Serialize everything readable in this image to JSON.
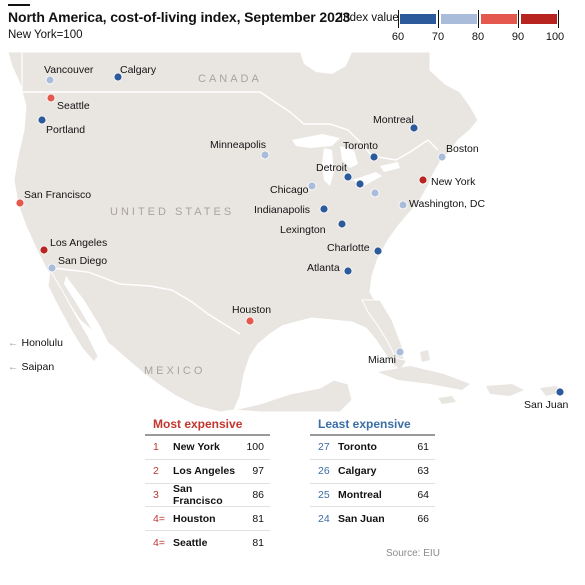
{
  "header": {
    "title": "North America, cost-of-living index, September 2023",
    "subtitle": "New York=100"
  },
  "legend": {
    "title": "Index value",
    "ticks": [
      "60",
      "70",
      "80",
      "90",
      "100"
    ],
    "bins": [
      {
        "from": 60,
        "to": 70,
        "color": "#2c5a9a"
      },
      {
        "from": 70,
        "to": 80,
        "color": "#a9bcd9"
      },
      {
        "from": 80,
        "to": 90,
        "color": "#e4584e"
      },
      {
        "from": 90,
        "to": 100,
        "color": "#b8241f"
      }
    ]
  },
  "country_labels": {
    "canada": "CANADA",
    "usa": "UNITED STATES",
    "mexico": "MEXICO"
  },
  "cities": [
    {
      "name": "Vancouver",
      "category": "70-80"
    },
    {
      "name": "Calgary",
      "category": "60-70"
    },
    {
      "name": "Seattle",
      "category": "80-90"
    },
    {
      "name": "Portland",
      "category": "60-70"
    },
    {
      "name": "San Francisco",
      "category": "80-90"
    },
    {
      "name": "Los Angeles",
      "category": "90-100"
    },
    {
      "name": "San Diego",
      "category": "70-80"
    },
    {
      "name": "Minneapolis",
      "category": "70-80"
    },
    {
      "name": "Chicago",
      "category": "70-80"
    },
    {
      "name": "Detroit",
      "category": "60-70"
    },
    {
      "name": "Toronto",
      "category": "60-70"
    },
    {
      "name": "Montreal",
      "category": "60-70"
    },
    {
      "name": "Boston",
      "category": "70-80"
    },
    {
      "name": "New York",
      "category": "90-100"
    },
    {
      "name": "Washington, DC",
      "category": "70-80"
    },
    {
      "name": "Indianapolis",
      "category": "60-70"
    },
    {
      "name": "Lexington",
      "category": "60-70"
    },
    {
      "name": "Charlotte",
      "category": "60-70"
    },
    {
      "name": "Atlanta",
      "category": "60-70"
    },
    {
      "name": "Houston",
      "category": "80-90"
    },
    {
      "name": "Miami",
      "category": "70-80"
    },
    {
      "name": "San Juan",
      "category": "60-70"
    }
  ],
  "offmap": {
    "honolulu": "Honolulu",
    "saipan": "Saipan"
  },
  "most_expensive": {
    "heading": "Most expensive",
    "rows": [
      {
        "rank": "1",
        "city": "New York",
        "value": "100"
      },
      {
        "rank": "2",
        "city": "Los Angeles",
        "value": "97"
      },
      {
        "rank": "3",
        "city": "San Francisco",
        "value": "86"
      },
      {
        "rank": "4=",
        "city": "Houston",
        "value": "81"
      },
      {
        "rank": "4=",
        "city": "Seattle",
        "value": "81"
      }
    ]
  },
  "least_expensive": {
    "heading": "Least expensive",
    "rows": [
      {
        "rank": "27",
        "city": "Toronto",
        "value": "61"
      },
      {
        "rank": "26",
        "city": "Calgary",
        "value": "63"
      },
      {
        "rank": "25",
        "city": "Montreal",
        "value": "64"
      },
      {
        "rank": "24",
        "city": "San Juan",
        "value": "66"
      }
    ]
  },
  "source": "Source: EIU"
}
